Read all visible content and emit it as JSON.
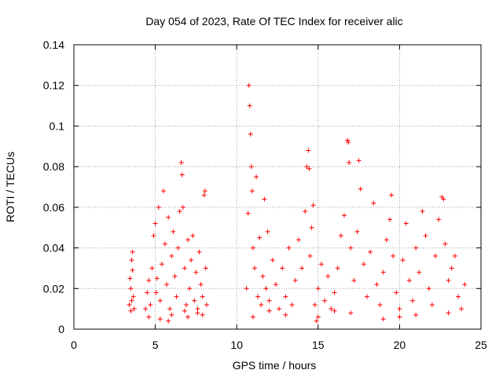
{
  "chart_data": {
    "type": "scatter",
    "title": "Day 054 of 2023, Rate Of TEC Index for receiver alic",
    "xlabel": "GPS time / hours",
    "ylabel": "ROTI / TECUs",
    "xlim": [
      0,
      25
    ],
    "ylim": [
      0,
      0.14
    ],
    "x_ticks": [
      0,
      5,
      10,
      15,
      20,
      25
    ],
    "x_tick_labels": [
      "0",
      "5",
      "10",
      "15",
      "20",
      "25"
    ],
    "y_ticks": [
      0,
      0.02,
      0.04,
      0.06,
      0.08,
      0.1,
      0.12,
      0.14
    ],
    "y_tick_labels": [
      "0",
      "0.02",
      "0.04",
      "0.06",
      "0.08",
      "0.1",
      "0.12",
      "0.14"
    ],
    "grid": true,
    "marker": "plus",
    "color": "#ff0000",
    "series": [
      {
        "name": "ROTI",
        "points": [
          [
            3.4,
            0.012
          ],
          [
            3.5,
            0.02
          ],
          [
            3.55,
            0.034
          ],
          [
            3.6,
            0.038
          ],
          [
            3.65,
            0.016
          ],
          [
            3.7,
            0.01
          ],
          [
            3.5,
            0.009
          ],
          [
            3.45,
            0.025
          ],
          [
            3.6,
            0.029
          ],
          [
            3.55,
            0.014
          ],
          [
            4.4,
            0.01
          ],
          [
            4.5,
            0.018
          ],
          [
            4.6,
            0.024
          ],
          [
            4.7,
            0.012
          ],
          [
            4.8,
            0.03
          ],
          [
            4.9,
            0.046
          ],
          [
            5.0,
            0.052
          ],
          [
            5.05,
            0.018
          ],
          [
            5.1,
            0.025
          ],
          [
            5.2,
            0.06
          ],
          [
            5.3,
            0.014
          ],
          [
            5.4,
            0.032
          ],
          [
            5.5,
            0.068
          ],
          [
            5.6,
            0.042
          ],
          [
            5.7,
            0.022
          ],
          [
            5.8,
            0.055
          ],
          [
            5.9,
            0.01
          ],
          [
            6.0,
            0.036
          ],
          [
            6.1,
            0.048
          ],
          [
            6.2,
            0.026
          ],
          [
            6.3,
            0.016
          ],
          [
            6.4,
            0.04
          ],
          [
            6.5,
            0.058
          ],
          [
            6.6,
            0.082
          ],
          [
            6.65,
            0.076
          ],
          [
            6.7,
            0.06
          ],
          [
            6.8,
            0.03
          ],
          [
            6.9,
            0.012
          ],
          [
            7.0,
            0.044
          ],
          [
            7.1,
            0.02
          ],
          [
            7.2,
            0.034
          ],
          [
            7.3,
            0.046
          ],
          [
            7.4,
            0.014
          ],
          [
            7.5,
            0.028
          ],
          [
            7.6,
            0.01
          ],
          [
            7.7,
            0.038
          ],
          [
            7.8,
            0.022
          ],
          [
            7.9,
            0.016
          ],
          [
            8.0,
            0.066
          ],
          [
            8.05,
            0.068
          ],
          [
            8.1,
            0.03
          ],
          [
            8.15,
            0.012
          ],
          [
            4.6,
            0.006
          ],
          [
            5.3,
            0.005
          ],
          [
            6.0,
            0.007
          ],
          [
            7.0,
            0.006
          ],
          [
            7.6,
            0.008
          ],
          [
            5.8,
            0.004
          ],
          [
            6.8,
            0.009
          ],
          [
            7.9,
            0.007
          ],
          [
            10.6,
            0.02
          ],
          [
            10.7,
            0.057
          ],
          [
            10.75,
            0.12
          ],
          [
            10.8,
            0.11
          ],
          [
            10.85,
            0.096
          ],
          [
            10.9,
            0.08
          ],
          [
            10.95,
            0.068
          ],
          [
            11.0,
            0.04
          ],
          [
            11.1,
            0.03
          ],
          [
            11.2,
            0.075
          ],
          [
            11.3,
            0.016
          ],
          [
            11.4,
            0.045
          ],
          [
            11.5,
            0.012
          ],
          [
            11.6,
            0.026
          ],
          [
            11.7,
            0.064
          ],
          [
            11.8,
            0.02
          ],
          [
            11.9,
            0.048
          ],
          [
            12.0,
            0.014
          ],
          [
            12.2,
            0.034
          ],
          [
            12.4,
            0.022
          ],
          [
            12.6,
            0.01
          ],
          [
            12.8,
            0.03
          ],
          [
            13.0,
            0.016
          ],
          [
            13.2,
            0.04
          ],
          [
            13.4,
            0.012
          ],
          [
            13.6,
            0.024
          ],
          [
            13.8,
            0.044
          ],
          [
            14.0,
            0.03
          ],
          [
            14.2,
            0.058
          ],
          [
            14.3,
            0.08
          ],
          [
            14.4,
            0.088
          ],
          [
            14.45,
            0.079
          ],
          [
            14.5,
            0.036
          ],
          [
            14.6,
            0.05
          ],
          [
            14.7,
            0.061
          ],
          [
            14.8,
            0.012
          ],
          [
            14.9,
            0.004
          ],
          [
            15.0,
            0.02
          ],
          [
            15.2,
            0.032
          ],
          [
            15.4,
            0.014
          ],
          [
            15.6,
            0.026
          ],
          [
            15.8,
            0.01
          ],
          [
            16.0,
            0.018
          ],
          [
            16.2,
            0.03
          ],
          [
            16.4,
            0.046
          ],
          [
            16.6,
            0.056
          ],
          [
            16.8,
            0.093
          ],
          [
            16.85,
            0.092
          ],
          [
            16.9,
            0.082
          ],
          [
            17.0,
            0.04
          ],
          [
            17.2,
            0.024
          ],
          [
            17.4,
            0.048
          ],
          [
            17.5,
            0.083
          ],
          [
            17.6,
            0.069
          ],
          [
            17.8,
            0.032
          ],
          [
            18.0,
            0.016
          ],
          [
            18.2,
            0.038
          ],
          [
            18.4,
            0.062
          ],
          [
            18.6,
            0.022
          ],
          [
            18.8,
            0.012
          ],
          [
            19.0,
            0.028
          ],
          [
            19.2,
            0.044
          ],
          [
            19.4,
            0.054
          ],
          [
            19.5,
            0.066
          ],
          [
            19.6,
            0.036
          ],
          [
            19.8,
            0.018
          ],
          [
            20.0,
            0.01
          ],
          [
            20.2,
            0.034
          ],
          [
            20.4,
            0.052
          ],
          [
            20.6,
            0.024
          ],
          [
            20.8,
            0.014
          ],
          [
            21.0,
            0.04
          ],
          [
            21.2,
            0.028
          ],
          [
            21.4,
            0.058
          ],
          [
            21.6,
            0.046
          ],
          [
            21.8,
            0.02
          ],
          [
            22.0,
            0.012
          ],
          [
            22.2,
            0.036
          ],
          [
            22.4,
            0.054
          ],
          [
            22.6,
            0.065
          ],
          [
            22.7,
            0.064
          ],
          [
            22.8,
            0.042
          ],
          [
            23.0,
            0.024
          ],
          [
            23.2,
            0.03
          ],
          [
            23.4,
            0.036
          ],
          [
            23.6,
            0.016
          ],
          [
            23.8,
            0.01
          ],
          [
            24.0,
            0.022
          ],
          [
            11.0,
            0.006
          ],
          [
            13.0,
            0.007
          ],
          [
            15.0,
            0.006
          ],
          [
            17.0,
            0.008
          ],
          [
            19.0,
            0.005
          ],
          [
            21.0,
            0.007
          ],
          [
            23.0,
            0.008
          ],
          [
            12.0,
            0.009
          ],
          [
            16.0,
            0.009
          ],
          [
            20.0,
            0.006
          ]
        ]
      }
    ]
  }
}
